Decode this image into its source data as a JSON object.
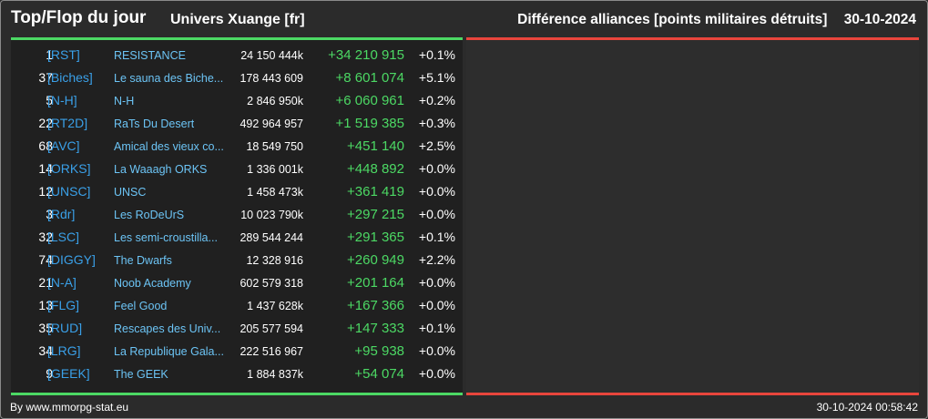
{
  "header": {
    "title": "Top/Flop du jour",
    "universe": "Univers Xuange [fr]",
    "metric": "Différence alliances [points militaires détruits]",
    "date": "30-10-2024"
  },
  "rows": [
    {
      "rank": "1",
      "tag": "[RST]",
      "name": "RESISTANCE",
      "points": "24 150 444k",
      "diff": "+34 210 915",
      "pct": "+0.1%"
    },
    {
      "rank": "37",
      "tag": "[Biches]",
      "name": "Le sauna des Biche...",
      "points": "178 443 609",
      "diff": "+8 601 074",
      "pct": "+5.1%"
    },
    {
      "rank": "5",
      "tag": "[N-H]",
      "name": "N-H",
      "points": "2 846 950k",
      "diff": "+6 060 961",
      "pct": "+0.2%"
    },
    {
      "rank": "22",
      "tag": "[RT2D]",
      "name": "RaTs Du Desert",
      "points": "492 964 957",
      "diff": "+1 519 385",
      "pct": "+0.3%"
    },
    {
      "rank": "68",
      "tag": "[AVC]",
      "name": "Amical des vieux co...",
      "points": "18 549 750",
      "diff": "+451 140",
      "pct": "+2.5%"
    },
    {
      "rank": "14",
      "tag": "[ORKS]",
      "name": "La Waaagh ORKS",
      "points": "1 336 001k",
      "diff": "+448 892",
      "pct": "+0.0%"
    },
    {
      "rank": "12",
      "tag": "[UNSC]",
      "name": "UNSC",
      "points": "1 458 473k",
      "diff": "+361 419",
      "pct": "+0.0%"
    },
    {
      "rank": "3",
      "tag": "[Rdr]",
      "name": "Les RoDeUrS",
      "points": "10 023 790k",
      "diff": "+297 215",
      "pct": "+0.0%"
    },
    {
      "rank": "32",
      "tag": "[LSC]",
      "name": "Les semi-croustilla...",
      "points": "289 544 244",
      "diff": "+291 365",
      "pct": "+0.1%"
    },
    {
      "rank": "74",
      "tag": "[DIGGY]",
      "name": "The Dwarfs",
      "points": "12 328 916",
      "diff": "+260 949",
      "pct": "+2.2%"
    },
    {
      "rank": "21",
      "tag": "[N-A]",
      "name": "Noob Academy",
      "points": "602 579 318",
      "diff": "+201 164",
      "pct": "+0.0%"
    },
    {
      "rank": "13",
      "tag": "[FLG]",
      "name": "Feel Good",
      "points": "1 437 628k",
      "diff": "+167 366",
      "pct": "+0.0%"
    },
    {
      "rank": "35",
      "tag": "[RUD]",
      "name": "Rescapes des Univ...",
      "points": "205 577 594",
      "diff": "+147 333",
      "pct": "+0.1%"
    },
    {
      "rank": "34",
      "tag": "[LRG]",
      "name": "La Republique Gala...",
      "points": "222 516 967",
      "diff": "+95 938",
      "pct": "+0.0%"
    },
    {
      "rank": "9",
      "tag": "[GEEK]",
      "name": "The GEEK",
      "points": "1 884 837k",
      "diff": "+54 074",
      "pct": "+0.0%"
    }
  ],
  "footer": {
    "credit": "By www.mmorpg-stat.eu",
    "timestamp": "30-10-2024 00:58:42"
  },
  "colors": {
    "top_accent": "#4cd964",
    "flop_accent": "#e8453c",
    "tag": "#3aa0e8",
    "name": "#6cc4f5"
  }
}
